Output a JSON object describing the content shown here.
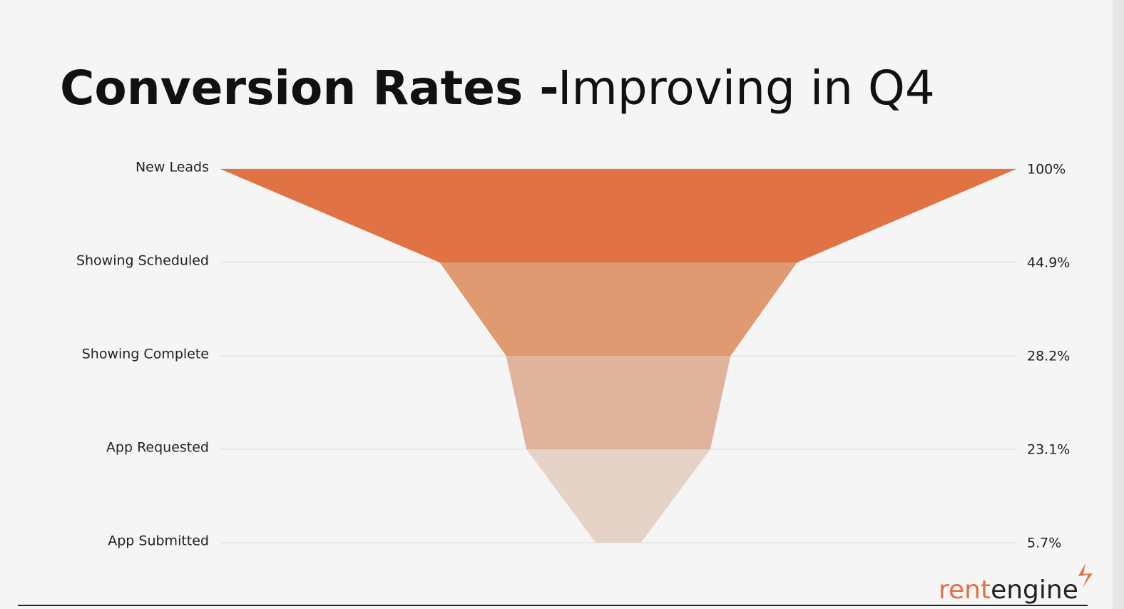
{
  "chart_data": {
    "type": "funnel",
    "title": "Conversion Rates -",
    "subtitle": "Improving in Q4",
    "categories": [
      "New Leads",
      "Showing Scheduled",
      "Showing Complete",
      "App Requested",
      "App Submitted"
    ],
    "values": [
      100,
      44.9,
      28.2,
      23.1,
      5.7
    ],
    "value_labels": [
      "100%",
      "44.9%",
      "28.2%",
      "23.1%",
      "5.7%"
    ],
    "colors": [
      "#e07244",
      "#df9a72",
      "#dfb39c",
      "#e4d3c6"
    ],
    "grid": true
  },
  "logo": [
    "rent",
    "engine"
  ]
}
